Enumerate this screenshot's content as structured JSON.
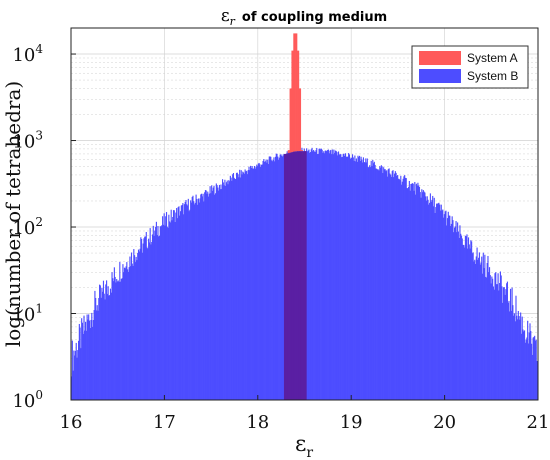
{
  "chart_data": {
    "type": "histogram",
    "title_symbol": "ε",
    "title_subscript": "r",
    "title_rest": "of coupling medium",
    "xlabel_symbol": "ε",
    "xlabel_subscript": "r",
    "ylabel": "log(number of tetrahedra)",
    "x_range": [
      16,
      21
    ],
    "y_scale": "log",
    "y_range": [
      1,
      20000
    ],
    "x_ticks": [
      "16",
      "17",
      "18",
      "19",
      "20",
      "21"
    ],
    "y_ticks": [
      {
        "value": 1,
        "base": "10",
        "exp": "0"
      },
      {
        "value": 10,
        "base": "10",
        "exp": "1"
      },
      {
        "value": 100,
        "base": "10",
        "exp": "2"
      },
      {
        "value": 1000,
        "base": "10",
        "exp": "3"
      },
      {
        "value": 10000,
        "base": "10",
        "exp": "4"
      }
    ],
    "grid": true,
    "legend_position": "top-right",
    "series": [
      {
        "name": "System B",
        "color": "#4d4dff",
        "edge_color": "#2222cc",
        "points": [
          [
            16.0,
            3
          ],
          [
            16.25,
            12
          ],
          [
            16.5,
            30
          ],
          [
            16.75,
            60
          ],
          [
            17.0,
            115
          ],
          [
            17.25,
            180
          ],
          [
            17.5,
            260
          ],
          [
            17.75,
            380
          ],
          [
            18.0,
            520
          ],
          [
            18.25,
            680
          ],
          [
            18.4,
            750
          ],
          [
            18.6,
            760
          ],
          [
            18.8,
            720
          ],
          [
            19.0,
            650
          ],
          [
            19.25,
            520
          ],
          [
            19.5,
            380
          ],
          [
            19.75,
            255
          ],
          [
            20.0,
            140
          ],
          [
            20.25,
            60
          ],
          [
            20.5,
            30
          ],
          [
            20.75,
            12
          ],
          [
            21.0,
            3
          ]
        ]
      },
      {
        "name": "System A",
        "color": "#ff5a5a",
        "edge_color": "#cc2222",
        "points": [
          [
            18.28,
            1
          ],
          [
            18.3,
            30
          ],
          [
            18.32,
            300
          ],
          [
            18.34,
            2000
          ],
          [
            18.36,
            8000
          ],
          [
            18.38,
            15000
          ],
          [
            18.4,
            20000
          ],
          [
            18.42,
            15000
          ],
          [
            18.44,
            8000
          ],
          [
            18.46,
            2000
          ],
          [
            18.48,
            300
          ],
          [
            18.5,
            30
          ],
          [
            18.52,
            1
          ]
        ]
      }
    ],
    "overlap_color": "#5a1fa3"
  }
}
